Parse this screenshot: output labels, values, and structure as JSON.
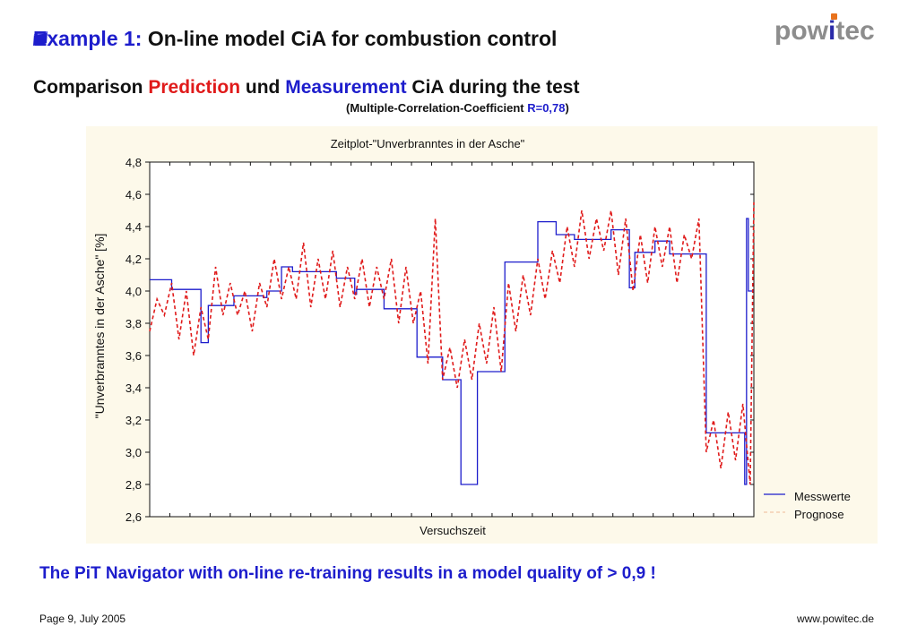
{
  "slide": {
    "title_prefix": "Example 1:",
    "title_rest": " On-line model CiA for combustion control",
    "logo_left": "pow",
    "logo_i": "i",
    "logo_right": "tec",
    "subtitle_a": "Comparison ",
    "subtitle_prediction": "Prediction",
    "subtitle_b": " und ",
    "subtitle_measurement": "Measurement",
    "subtitle_c": " CiA during the test",
    "note_a": "(Multiple-Correlation-Coefficient ",
    "note_r": "R=0,78",
    "note_b": ")",
    "conclusion": "The PiT Navigator with on-line re-training results in a model quality of > 0,9 !",
    "footer_left": "Page 9, July 2005",
    "footer_right": "www.powitec.de",
    "colors": {
      "accent_blue": "#1d1dcc",
      "accent_red": "#e01b1b",
      "chart_bg": "#fdf9ea",
      "logo_gray": "#8d8d8d",
      "logo_dot": "#e8721c"
    },
    "bullet_icon": "square-bullet-icon"
  },
  "chart_data": {
    "type": "line",
    "title": "Zeitplot-\"Unverbranntes in der Asche\"",
    "xlabel": "Versuchszeit",
    "ylabel": "\"Unverbranntes in der Asche\" [%]",
    "ylim": [
      2.6,
      4.8
    ],
    "yticks": [
      "2,6",
      "2,8",
      "3,0",
      "3,2",
      "3,4",
      "3,6",
      "3,8",
      "4,0",
      "4,2",
      "4,4",
      "4,6",
      "4,8"
    ],
    "xlim": [
      0,
      330
    ],
    "x_tick_labels_shown": false,
    "legend_position": "bottom-right",
    "series": [
      {
        "name": "Messwerte",
        "style": "solid",
        "color": "#1d1dcc",
        "x": [
          0,
          10,
          12,
          14,
          28,
          30,
          32,
          46,
          62,
          63,
          64,
          72,
          76,
          78,
          88,
          102,
          108,
          112,
          113,
          127,
          128,
          142,
          146,
          160,
          170,
          172,
          178,
          179,
          192,
          194,
          206,
          212,
          220,
          222,
          230,
          232,
          240,
          252,
          254,
          262,
          264,
          265,
          274,
          276,
          282,
          284,
          300,
          304,
          310,
          311,
          325,
          326,
          327,
          328,
          330
        ],
        "y": [
          4.07,
          4.07,
          4.01,
          4.01,
          3.68,
          3.68,
          3.91,
          3.97,
          3.96,
          3.96,
          4.0,
          4.15,
          4.15,
          4.12,
          4.12,
          4.08,
          4.08,
          3.98,
          4.01,
          4.01,
          3.89,
          3.89,
          3.59,
          3.45,
          2.8,
          2.8,
          2.8,
          3.5,
          3.5,
          4.18,
          4.18,
          4.43,
          4.43,
          4.35,
          4.35,
          4.32,
          4.32,
          4.38,
          4.38,
          4.02,
          4.02,
          4.24,
          4.24,
          4.31,
          4.31,
          4.23,
          4.23,
          3.12,
          3.12,
          3.12,
          2.8,
          4.45,
          4.0,
          4.0,
          4.0
        ]
      },
      {
        "name": "Prognose",
        "style": "dashed",
        "color": "#e01b1b",
        "x": [
          0,
          4,
          8,
          12,
          16,
          20,
          24,
          28,
          32,
          36,
          40,
          44,
          48,
          52,
          56,
          60,
          64,
          68,
          72,
          76,
          80,
          84,
          88,
          92,
          96,
          100,
          104,
          108,
          112,
          116,
          120,
          124,
          128,
          132,
          136,
          140,
          144,
          148,
          152,
          156,
          160,
          164,
          168,
          172,
          176,
          180,
          184,
          188,
          192,
          196,
          200,
          204,
          208,
          212,
          216,
          220,
          224,
          228,
          232,
          236,
          240,
          244,
          248,
          252,
          256,
          260,
          264,
          268,
          272,
          276,
          280,
          284,
          288,
          292,
          296,
          300,
          304,
          308,
          312,
          316,
          320,
          324,
          328,
          330
        ],
        "y": [
          3.75,
          3.95,
          3.85,
          4.05,
          3.7,
          4.0,
          3.6,
          3.9,
          3.7,
          4.15,
          3.85,
          4.05,
          3.85,
          4.0,
          3.75,
          4.05,
          3.9,
          4.2,
          3.95,
          4.15,
          3.95,
          4.3,
          3.9,
          4.2,
          3.95,
          4.25,
          3.9,
          4.15,
          3.95,
          4.2,
          3.9,
          4.15,
          3.95,
          4.2,
          3.8,
          4.15,
          3.8,
          4.0,
          3.55,
          4.45,
          3.45,
          3.65,
          3.4,
          3.7,
          3.45,
          3.8,
          3.55,
          3.9,
          3.5,
          4.05,
          3.75,
          4.1,
          3.85,
          4.2,
          3.95,
          4.25,
          4.05,
          4.4,
          4.15,
          4.5,
          4.2,
          4.45,
          4.25,
          4.5,
          4.1,
          4.45,
          4.0,
          4.35,
          4.05,
          4.4,
          4.15,
          4.4,
          4.05,
          4.35,
          4.2,
          4.45,
          3.0,
          3.2,
          2.9,
          3.25,
          2.95,
          3.3,
          2.8,
          4.55
        ]
      }
    ]
  }
}
